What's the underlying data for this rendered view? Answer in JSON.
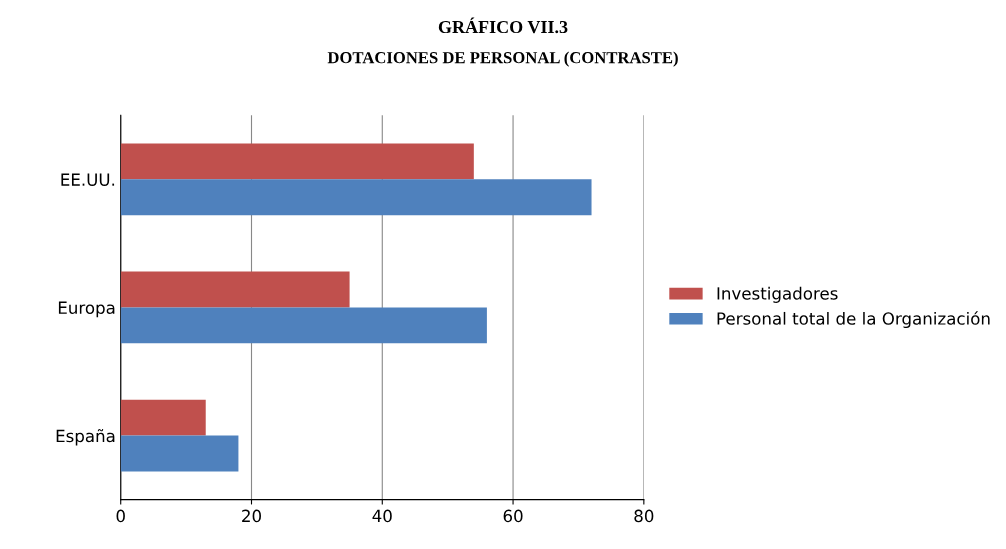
{
  "chart_data": {
    "type": "bar",
    "orientation": "horizontal",
    "title": "GRÁFICO VII.3",
    "subtitle": "DOTACIONES DE PERSONAL (CONTRASTE)",
    "categories": [
      "EE.UU.",
      "Europa",
      "España"
    ],
    "series": [
      {
        "name": "Investigadores",
        "color": "#c0504d",
        "values": [
          54,
          35,
          13
        ]
      },
      {
        "name": "Personal total de la Organización",
        "color": "#4f81bd",
        "values": [
          72,
          56,
          18
        ]
      }
    ],
    "xlim": [
      0,
      80
    ],
    "xticks": [
      0,
      20,
      40,
      60,
      80
    ],
    "grid": "x",
    "legend": "right"
  }
}
